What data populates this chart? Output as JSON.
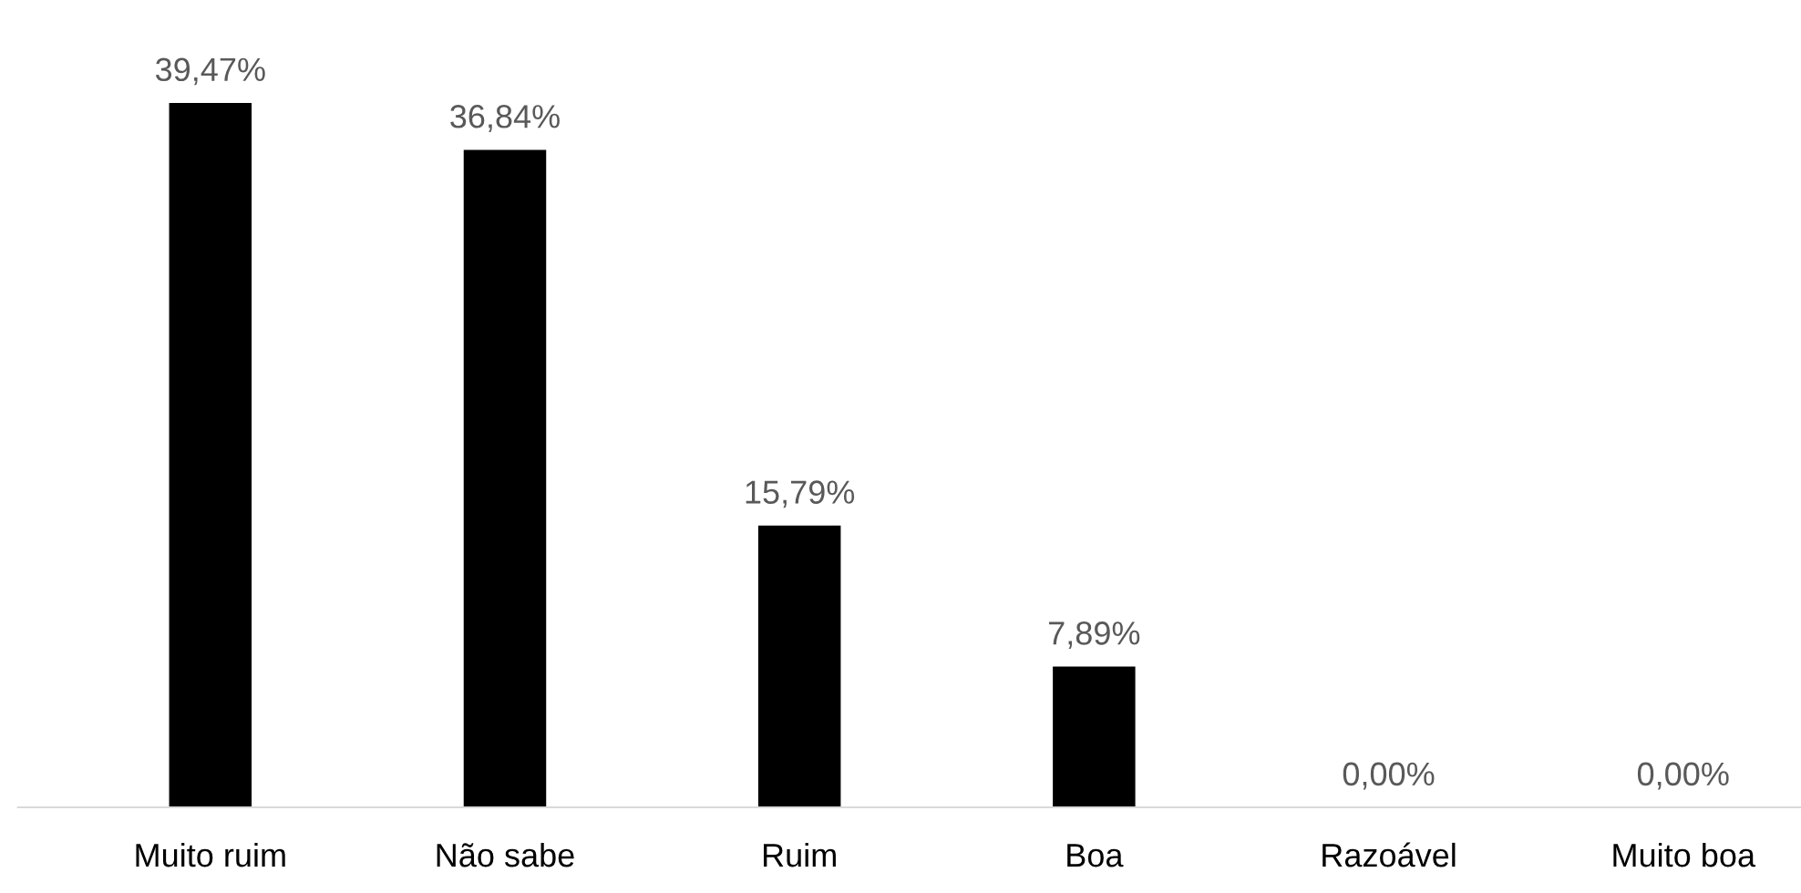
{
  "chart_data": {
    "type": "bar",
    "categories": [
      "Muito ruim",
      "Não sabe",
      "Ruim",
      "Boa",
      "Razoável",
      "Muito boa"
    ],
    "values": [
      39.47,
      36.84,
      15.79,
      7.89,
      0,
      0
    ],
    "value_labels": [
      "39,47%",
      "36,84%",
      "15,79%",
      "7,89%",
      "0,00%",
      "0,00%"
    ],
    "color": "#000000",
    "grid": false,
    "legend": false
  }
}
